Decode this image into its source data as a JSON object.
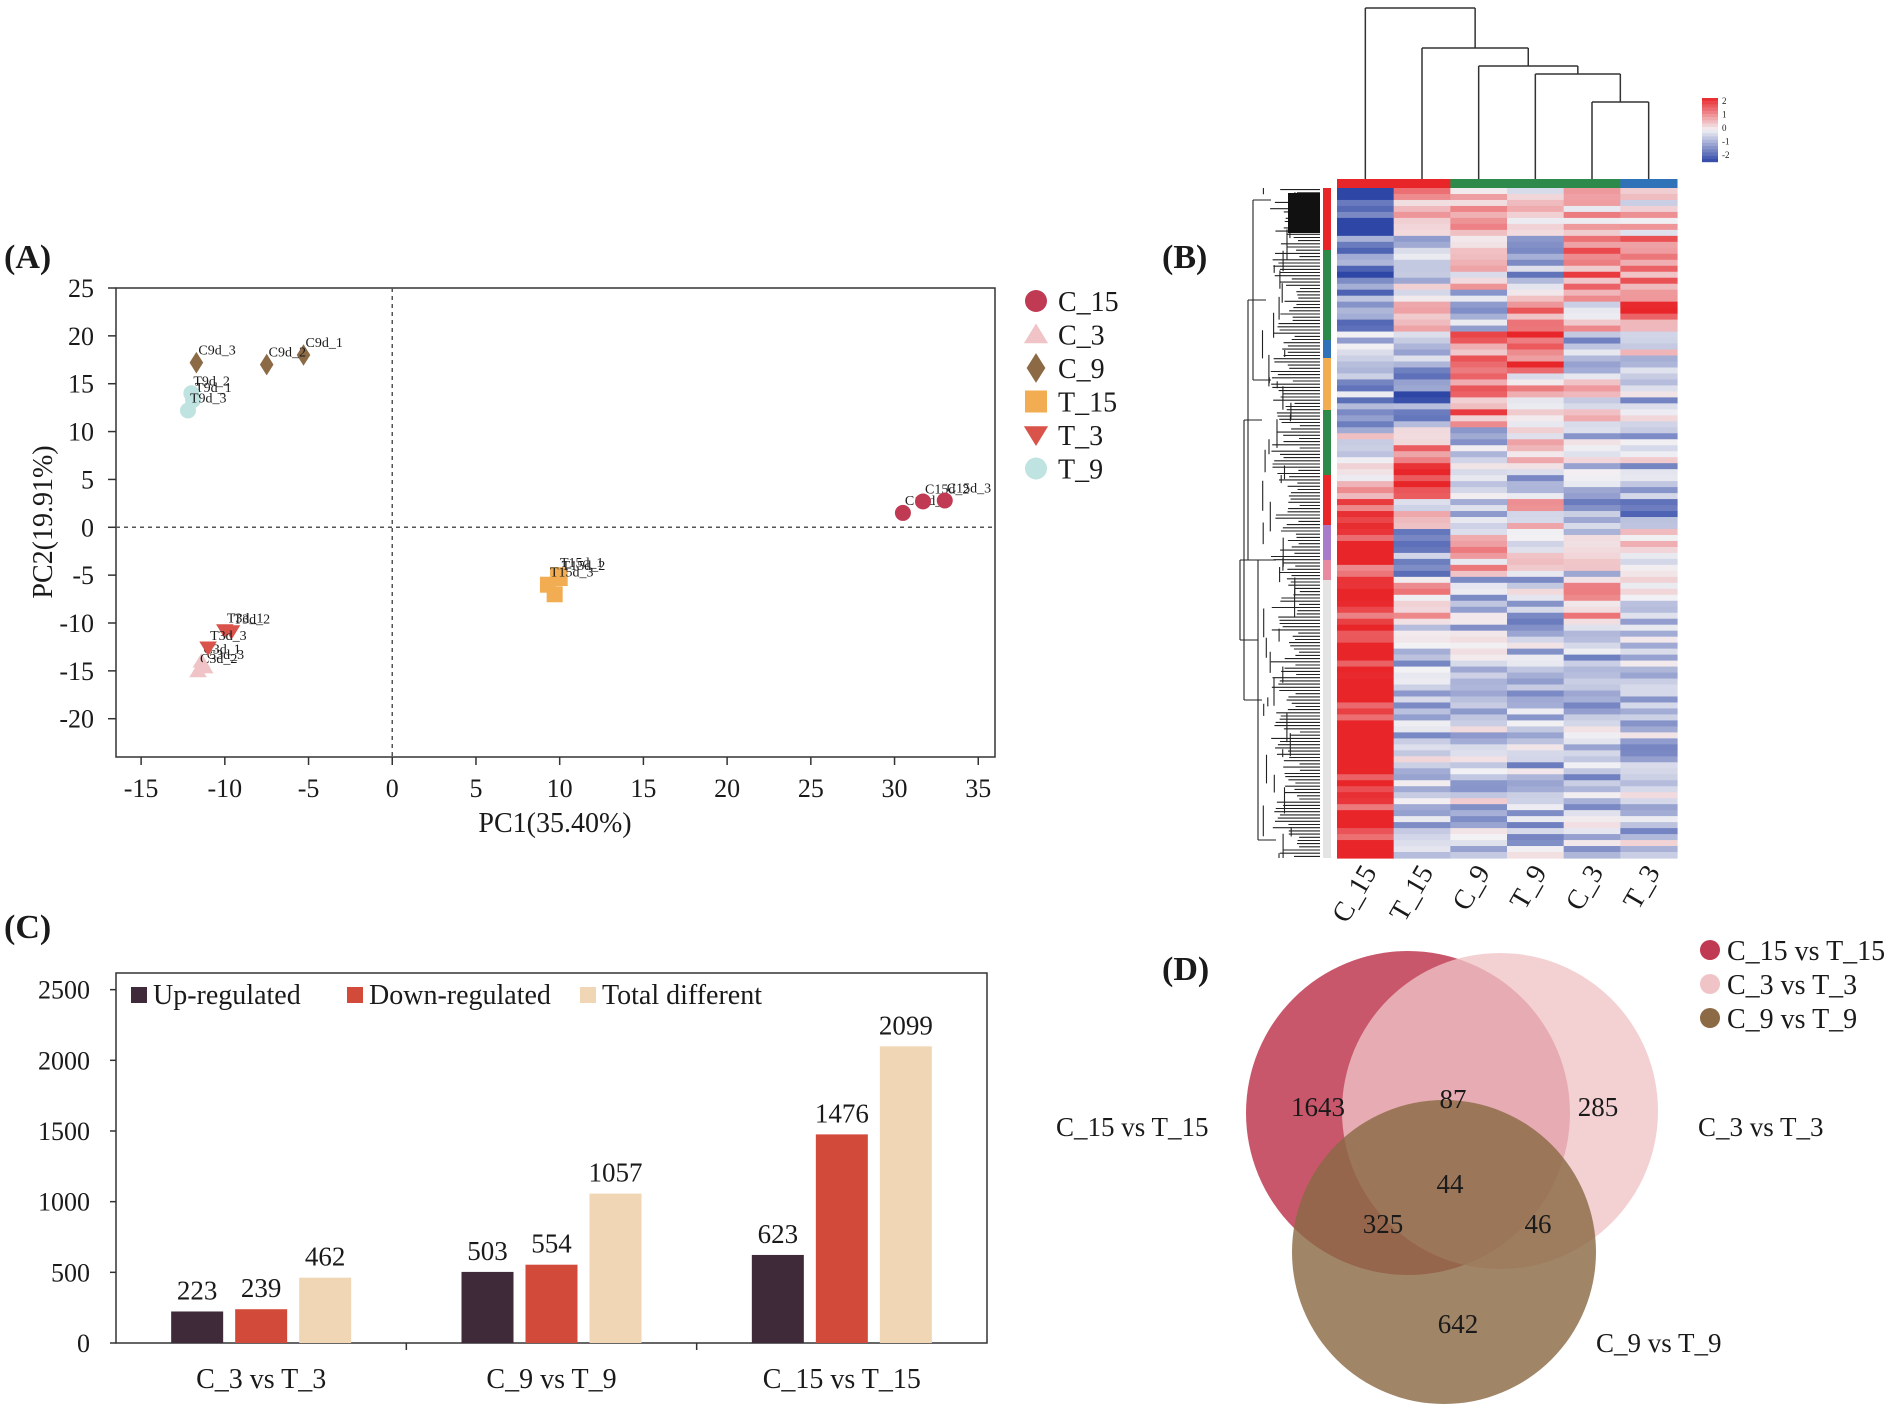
{
  "panel_labels": {
    "a": "(A)",
    "b": "(B)",
    "c": "(C)",
    "d": "(D)"
  },
  "colors": {
    "C_15": "#bf3a52",
    "C_3": "#f0c4c6",
    "C_9": "#8b6a45",
    "T_15": "#f2ad52",
    "T_3": "#d9534a",
    "T_9": "#bfe3e1",
    "up": "#3f2a3a",
    "down": "#d24a3a",
    "total": "#f1d6b5",
    "heat_hi": "#e8262a",
    "heat_lo": "#2e47a6",
    "heat_mid": "#f2f1f4"
  },
  "chart_data": [
    {
      "type": "scatter",
      "id": "pca",
      "title": "",
      "xlabel": "PC1(35.40%)",
      "ylabel": "PC2(19.91%)",
      "xlim": [
        -16.5,
        36
      ],
      "ylim": [
        -24,
        25
      ],
      "xticks": [
        -15,
        -10,
        -5,
        0,
        5,
        10,
        15,
        20,
        25,
        30,
        35
      ],
      "yticks": [
        25,
        20,
        15,
        10,
        5,
        0,
        -5,
        -10,
        -15,
        -20
      ],
      "reference_lines": {
        "x": 0,
        "y": 0
      },
      "legend": [
        "C_15",
        "C_3",
        "C_9",
        "T_15",
        "T_3",
        "T_9"
      ],
      "series": [
        {
          "name": "C_15",
          "marker": "circle",
          "points": [
            {
              "x": 30.5,
              "y": 1.5,
              "label": "C15d_1"
            },
            {
              "x": 31.7,
              "y": 2.7,
              "label": "C15d_2"
            },
            {
              "x": 33.0,
              "y": 2.8,
              "label": "C15d_3"
            }
          ]
        },
        {
          "name": "C_3",
          "marker": "triangle-up",
          "points": [
            {
              "x": -11.4,
              "y": -14.0,
              "label": "C3d_1"
            },
            {
              "x": -11.6,
              "y": -15.0,
              "label": "C3d_2"
            },
            {
              "x": -11.2,
              "y": -14.6,
              "label": "C3d_3"
            }
          ]
        },
        {
          "name": "C_9",
          "marker": "diamond",
          "points": [
            {
              "x": -5.3,
              "y": 18.0,
              "label": "C9d_1"
            },
            {
              "x": -7.5,
              "y": 17.0,
              "label": "C9d_2"
            },
            {
              "x": -11.7,
              "y": 17.2,
              "label": "C9d_3"
            }
          ]
        },
        {
          "name": "T_15",
          "marker": "square",
          "points": [
            {
              "x": 9.9,
              "y": -5.0,
              "label": "T15d_1"
            },
            {
              "x": 10.0,
              "y": -5.3,
              "label": "T15d_2"
            },
            {
              "x": 9.3,
              "y": -6.0,
              "label": "T15d_3"
            },
            {
              "x": 9.7,
              "y": -7.0,
              "label": ""
            }
          ]
        },
        {
          "name": "T_3",
          "marker": "triangle-down",
          "points": [
            {
              "x": -10.0,
              "y": -10.8,
              "label": "T3d_1"
            },
            {
              "x": -9.6,
              "y": -10.9,
              "label": "T3d_2"
            },
            {
              "x": -11.0,
              "y": -12.6,
              "label": "T3d_3"
            }
          ]
        },
        {
          "name": "T_9",
          "marker": "circle",
          "points": [
            {
              "x": -11.9,
              "y": 13.3,
              "label": "T9d_1"
            },
            {
              "x": -12.0,
              "y": 14.0,
              "label": "T9d_2"
            },
            {
              "x": -12.2,
              "y": 12.2,
              "label": "T9d_3"
            }
          ]
        }
      ]
    },
    {
      "type": "heatmap",
      "id": "heatmap",
      "columns": [
        "C_15",
        "T_15",
        "C_9",
        "T_9",
        "C_3",
        "T_3"
      ],
      "column_groups": [
        "red",
        "red",
        "green",
        "green",
        "green",
        "blue"
      ],
      "colorbar_ticks": [
        "2",
        "1",
        "0",
        "-1",
        "-2"
      ],
      "value_range": [
        -2,
        2
      ]
    },
    {
      "type": "bar",
      "id": "deg-bars",
      "categories": [
        "C_3 vs T_3",
        "C_9 vs T_9",
        "C_15 vs T_15"
      ],
      "ylim": [
        0,
        2500
      ],
      "yticks": [
        0,
        500,
        1000,
        1500,
        2000,
        2500
      ],
      "series": [
        {
          "name": "Up-regulated",
          "values": [
            223,
            503,
            623
          ]
        },
        {
          "name": "Down-regulated",
          "values": [
            239,
            554,
            1476
          ]
        },
        {
          "name": "Total different",
          "values": [
            462,
            1057,
            2099
          ]
        }
      ]
    },
    {
      "type": "venn",
      "id": "venn",
      "sets": [
        "C_15 vs T_15",
        "C_3 vs T_3",
        "C_9 vs T_9"
      ],
      "regions": {
        "only_c15": 1643,
        "only_c3": 285,
        "only_c9": 642,
        "c15_c3": 87,
        "c15_c9": 325,
        "c3_c9": 46,
        "all": 44
      }
    }
  ]
}
